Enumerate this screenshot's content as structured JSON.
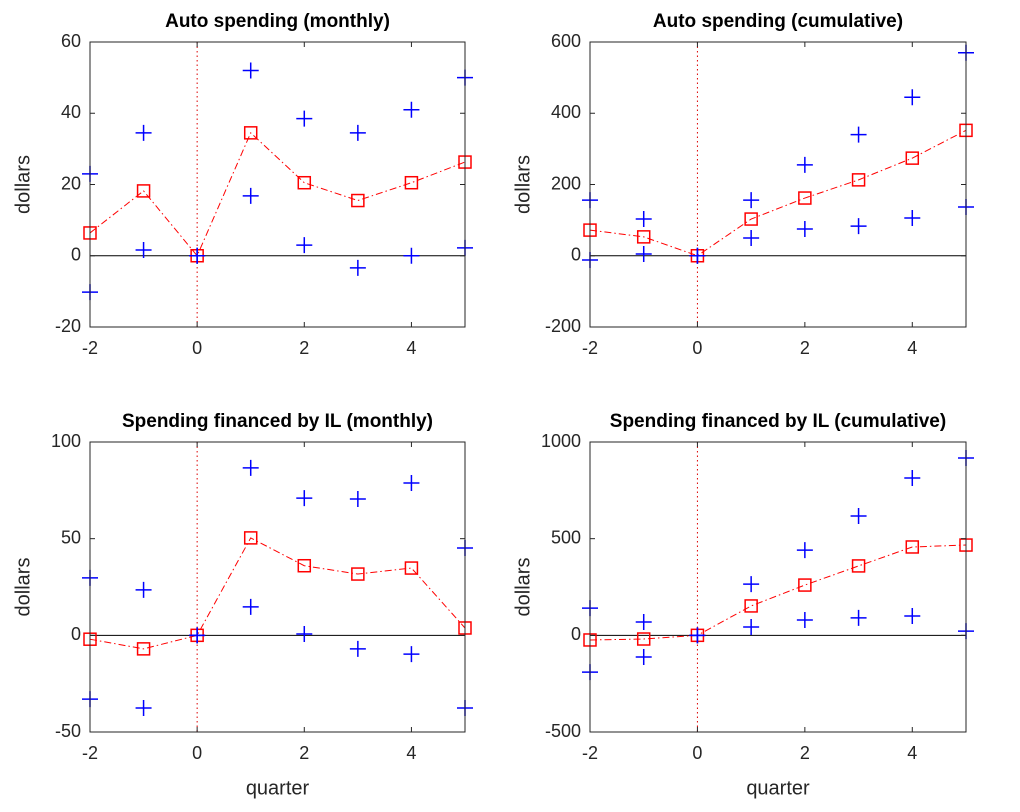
{
  "chart_data": [
    {
      "type": "line",
      "title": "Auto spending (monthly)",
      "ylabel": "dollars",
      "x": [
        -2,
        -1,
        0,
        1,
        2,
        3,
        4,
        5
      ],
      "xlim": [
        -2,
        5
      ],
      "xticks": [
        -2,
        0,
        2,
        4
      ],
      "ylim": [
        -20,
        60
      ],
      "yticks": [
        -20,
        0,
        20,
        40,
        60
      ],
      "hline": 0,
      "vline": 0,
      "series": [
        {
          "color": "#ff0000",
          "marker": "square",
          "linestyle": "dashdot",
          "values": [
            6.4,
            18.2,
            0,
            34.5,
            20.5,
            15.5,
            20.5,
            26.3
          ]
        },
        {
          "color": "#0000ff",
          "marker": "plus",
          "linestyle": "none",
          "values": [
            23,
            34.5,
            0,
            52,
            38.5,
            34.5,
            41,
            50
          ]
        },
        {
          "color": "#0000ff",
          "marker": "plus",
          "linestyle": "none",
          "values": [
            -10.2,
            1.6,
            0,
            16.8,
            3,
            -3.4,
            0,
            2.2
          ]
        }
      ]
    },
    {
      "type": "line",
      "title": "Auto spending (cumulative)",
      "ylabel": "dollars",
      "x": [
        -2,
        -1,
        0,
        1,
        2,
        3,
        4,
        5
      ],
      "xlim": [
        -2,
        5
      ],
      "xticks": [
        -2,
        0,
        2,
        4
      ],
      "ylim": [
        -200,
        600
      ],
      "yticks": [
        -200,
        0,
        200,
        400,
        600
      ],
      "hline": 0,
      "vline": 0,
      "series": [
        {
          "color": "#ff0000",
          "marker": "square",
          "linestyle": "dashdot",
          "values": [
            72,
            53,
            0,
            103,
            162,
            213,
            274,
            352
          ]
        },
        {
          "color": "#0000ff",
          "marker": "plus",
          "linestyle": "none",
          "values": [
            156,
            103,
            0,
            156,
            255,
            340,
            445,
            570
          ]
        },
        {
          "color": "#0000ff",
          "marker": "plus",
          "linestyle": "none",
          "values": [
            -12,
            5,
            0,
            50,
            75,
            83,
            106,
            137
          ]
        }
      ]
    },
    {
      "type": "line",
      "title": "Spending financed by IL (monthly)",
      "ylabel": "dollars",
      "xlabel": "quarter",
      "x": [
        -2,
        -1,
        0,
        1,
        2,
        3,
        4,
        5
      ],
      "xlim": [
        -2,
        5
      ],
      "xticks": [
        -2,
        0,
        2,
        4
      ],
      "ylim": [
        -50,
        100
      ],
      "yticks": [
        -50,
        0,
        50,
        100
      ],
      "hline": 0,
      "vline": 0,
      "series": [
        {
          "color": "#ff0000",
          "marker": "square",
          "linestyle": "dashdot",
          "values": [
            -2,
            -7,
            0,
            50.4,
            36,
            31.7,
            34.8,
            3.8
          ]
        },
        {
          "color": "#0000ff",
          "marker": "plus",
          "linestyle": "none",
          "values": [
            29.7,
            23.5,
            0,
            86.6,
            71,
            70.5,
            78.8,
            45.2
          ]
        },
        {
          "color": "#0000ff",
          "marker": "plus",
          "linestyle": "none",
          "values": [
            -33,
            -37.6,
            0,
            14.7,
            0.7,
            -7,
            -9.7,
            -37.6
          ]
        }
      ]
    },
    {
      "type": "line",
      "title": "Spending financed by IL (cumulative)",
      "ylabel": "dollars",
      "xlabel": "quarter",
      "x": [
        -2,
        -1,
        0,
        1,
        2,
        3,
        4,
        5
      ],
      "xlim": [
        -2,
        5
      ],
      "xticks": [
        -2,
        0,
        2,
        4
      ],
      "ylim": [
        -500,
        1000
      ],
      "yticks": [
        -500,
        0,
        500,
        1000
      ],
      "hline": 0,
      "vline": 0,
      "series": [
        {
          "color": "#ff0000",
          "marker": "square",
          "linestyle": "dashdot",
          "values": [
            -24,
            -19,
            0,
            152,
            260,
            359,
            457,
            467
          ]
        },
        {
          "color": "#0000ff",
          "marker": "plus",
          "linestyle": "none",
          "values": [
            141,
            69,
            0,
            265,
            441,
            617,
            814,
            917
          ]
        },
        {
          "color": "#0000ff",
          "marker": "plus",
          "linestyle": "none",
          "values": [
            -190,
            -112,
            0,
            43,
            79,
            90,
            100,
            22
          ]
        }
      ]
    }
  ]
}
